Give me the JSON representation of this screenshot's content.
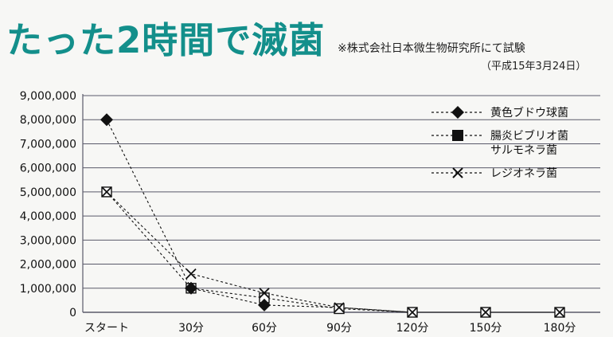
{
  "header": {
    "title": "たった2時間で滅菌",
    "note": "※株式会社日本微生物研究所にて試験",
    "date": "（平成15年3月24日）"
  },
  "chart_data": {
    "type": "line",
    "categories": [
      "スタート",
      "30分",
      "60分",
      "90分",
      "120分",
      "150分",
      "180分"
    ],
    "yticks": [
      "0",
      "1,000,000",
      "2,000,000",
      "3,000,000",
      "4,000,000",
      "5,000,000",
      "6,000,000",
      "7,000,000",
      "8,000,000",
      "9,000,000"
    ],
    "ylim": [
      0,
      9000000
    ],
    "grid": true,
    "legend_position": "top-right",
    "series": [
      {
        "name": "黄色ブドウ球菌",
        "name_lines": [
          "黄色ブドウ球菌"
        ],
        "marker": "diamond",
        "values": [
          8000000,
          1000000,
          300000,
          200000,
          0,
          0,
          0
        ]
      },
      {
        "name": "腸炎ビブリオ菌 サルモネラ菌",
        "name_lines": [
          "腸炎ビブリオ菌",
          "サルモネラ菌"
        ],
        "marker": "square",
        "values": [
          5000000,
          1000000,
          600000,
          150000,
          0,
          0,
          0
        ]
      },
      {
        "name": "レジオネラ菌",
        "name_lines": [
          "レジオネラ菌"
        ],
        "marker": "cross",
        "values": [
          5000000,
          1600000,
          800000,
          200000,
          0,
          0,
          0
        ]
      }
    ],
    "colors": {
      "line": "#111111",
      "grid": "#5a5a6a",
      "text": "#111111"
    }
  }
}
